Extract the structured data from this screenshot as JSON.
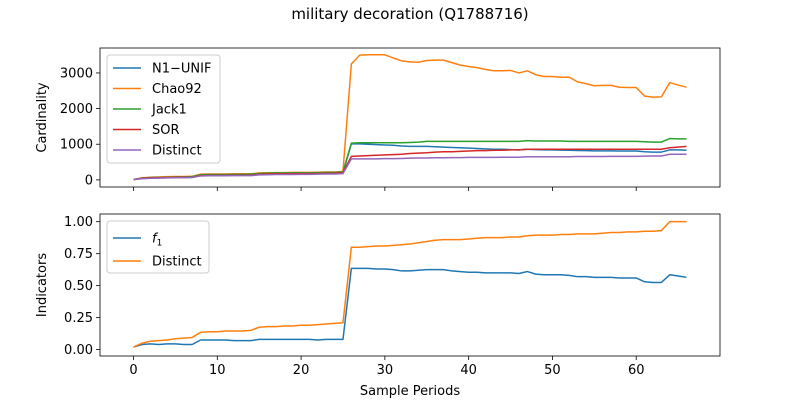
{
  "chart_data": [
    {
      "type": "line",
      "title": "military decoration (Q1788716)",
      "xlabel": "",
      "ylabel": "Cardinality",
      "xlim": [
        -4,
        70
      ],
      "ylim": [
        -200,
        3700
      ],
      "yticks": [
        0,
        1000,
        2000,
        3000
      ],
      "xticks": [
        0,
        10,
        20,
        30,
        40,
        50,
        60
      ],
      "show_xtick_labels": false,
      "grid": false,
      "legend_position": "upper-left",
      "x": [
        0,
        1,
        2,
        3,
        4,
        5,
        6,
        7,
        8,
        9,
        10,
        11,
        12,
        13,
        14,
        15,
        16,
        17,
        18,
        19,
        20,
        21,
        22,
        23,
        24,
        25,
        26,
        27,
        28,
        29,
        30,
        31,
        32,
        33,
        34,
        35,
        36,
        37,
        38,
        39,
        40,
        41,
        42,
        43,
        44,
        45,
        46,
        47,
        48,
        49,
        50,
        51,
        52,
        53,
        54,
        55,
        56,
        57,
        58,
        59,
        60,
        61,
        62,
        63,
        64,
        65,
        66
      ],
      "series": [
        {
          "name": "N1−UNIF",
          "color": "#1f77b4",
          "values": [
            10,
            40,
            50,
            55,
            60,
            65,
            65,
            70,
            120,
            125,
            125,
            125,
            130,
            130,
            130,
            155,
            165,
            170,
            170,
            170,
            175,
            175,
            180,
            185,
            185,
            200,
            1010,
            1010,
            1000,
            990,
            980,
            970,
            950,
            940,
            940,
            940,
            930,
            920,
            910,
            900,
            890,
            880,
            870,
            860,
            860,
            850,
            840,
            860,
            850,
            840,
            840,
            835,
            830,
            825,
            820,
            815,
            815,
            815,
            810,
            810,
            810,
            790,
            780,
            780,
            840,
            840,
            830
          ]
        },
        {
          "name": "Chao92",
          "color": "#ff7f0e",
          "values": [
            10,
            55,
            75,
            80,
            90,
            95,
            95,
            100,
            160,
            165,
            165,
            165,
            170,
            170,
            170,
            195,
            200,
            205,
            205,
            210,
            210,
            210,
            215,
            220,
            220,
            240,
            3250,
            3500,
            3510,
            3510,
            3510,
            3420,
            3340,
            3310,
            3300,
            3350,
            3360,
            3360,
            3290,
            3220,
            3180,
            3150,
            3100,
            3060,
            3060,
            3070,
            3000,
            3060,
            2950,
            2900,
            2900,
            2880,
            2880,
            2750,
            2700,
            2640,
            2650,
            2650,
            2600,
            2590,
            2590,
            2350,
            2320,
            2330,
            2730,
            2660,
            2600
          ]
        },
        {
          "name": "Jack1",
          "color": "#2ca02c",
          "values": [
            10,
            50,
            65,
            70,
            75,
            80,
            85,
            90,
            145,
            150,
            150,
            150,
            155,
            155,
            160,
            180,
            190,
            195,
            195,
            195,
            200,
            200,
            205,
            210,
            210,
            220,
            1030,
            1040,
            1040,
            1040,
            1040,
            1040,
            1040,
            1050,
            1060,
            1080,
            1080,
            1080,
            1080,
            1080,
            1080,
            1080,
            1080,
            1080,
            1080,
            1080,
            1080,
            1100,
            1090,
            1090,
            1090,
            1090,
            1080,
            1080,
            1080,
            1080,
            1080,
            1080,
            1080,
            1080,
            1080,
            1070,
            1060,
            1060,
            1160,
            1150,
            1150
          ]
        },
        {
          "name": "SOR",
          "color": "#d62728",
          "values": [
            10,
            45,
            60,
            62,
            65,
            70,
            72,
            75,
            120,
            125,
            125,
            125,
            130,
            130,
            130,
            155,
            165,
            170,
            170,
            170,
            175,
            175,
            180,
            185,
            185,
            200,
            660,
            670,
            680,
            690,
            700,
            710,
            720,
            740,
            750,
            760,
            780,
            790,
            790,
            800,
            810,
            820,
            820,
            830,
            830,
            840,
            840,
            860,
            860,
            860,
            860,
            860,
            860,
            860,
            860,
            860,
            860,
            860,
            860,
            860,
            860,
            860,
            860,
            860,
            900,
            920,
            940
          ]
        },
        {
          "name": "Distinct",
          "color": "#9467bd",
          "values": [
            10,
            30,
            45,
            50,
            55,
            60,
            60,
            65,
            110,
            115,
            115,
            115,
            120,
            120,
            120,
            140,
            145,
            150,
            150,
            150,
            155,
            155,
            160,
            165,
            165,
            175,
            590,
            590,
            590,
            590,
            595,
            595,
            600,
            610,
            615,
            615,
            620,
            620,
            625,
            625,
            630,
            630,
            630,
            630,
            635,
            635,
            635,
            650,
            650,
            650,
            650,
            650,
            650,
            655,
            655,
            655,
            655,
            660,
            660,
            660,
            660,
            665,
            670,
            670,
            720,
            720,
            720
          ]
        }
      ]
    },
    {
      "type": "line",
      "title": "",
      "xlabel": "Sample Periods",
      "ylabel": "Indicators",
      "xlim": [
        -4,
        70
      ],
      "ylim": [
        -0.05,
        1.06
      ],
      "yticks": [
        0.0,
        0.25,
        0.5,
        0.75,
        1.0
      ],
      "ytick_labels": [
        "0.00",
        "0.25",
        "0.50",
        "0.75",
        "1.00"
      ],
      "xticks": [
        0,
        10,
        20,
        30,
        40,
        50,
        60
      ],
      "grid": false,
      "legend_position": "upper-left",
      "x": [
        0,
        1,
        2,
        3,
        4,
        5,
        6,
        7,
        8,
        9,
        10,
        11,
        12,
        13,
        14,
        15,
        16,
        17,
        18,
        19,
        20,
        21,
        22,
        23,
        24,
        25,
        26,
        27,
        28,
        29,
        30,
        31,
        32,
        33,
        34,
        35,
        36,
        37,
        38,
        39,
        40,
        41,
        42,
        43,
        44,
        45,
        46,
        47,
        48,
        49,
        50,
        51,
        52,
        53,
        54,
        55,
        56,
        57,
        58,
        59,
        60,
        61,
        62,
        63,
        64,
        65,
        66
      ],
      "series": [
        {
          "name": "f1",
          "color": "#1f77b4",
          "values": [
            0.02,
            0.04,
            0.045,
            0.04,
            0.045,
            0.045,
            0.04,
            0.04,
            0.075,
            0.075,
            0.075,
            0.075,
            0.07,
            0.07,
            0.07,
            0.08,
            0.08,
            0.08,
            0.08,
            0.08,
            0.08,
            0.08,
            0.075,
            0.08,
            0.08,
            0.08,
            0.635,
            0.635,
            0.635,
            0.63,
            0.63,
            0.625,
            0.615,
            0.615,
            0.62,
            0.625,
            0.625,
            0.625,
            0.615,
            0.61,
            0.605,
            0.605,
            0.6,
            0.6,
            0.6,
            0.6,
            0.595,
            0.61,
            0.59,
            0.585,
            0.585,
            0.585,
            0.58,
            0.57,
            0.57,
            0.565,
            0.565,
            0.565,
            0.56,
            0.56,
            0.56,
            0.53,
            0.525,
            0.525,
            0.585,
            0.575,
            0.565
          ]
        },
        {
          "name": "Distinct",
          "color": "#ff7f0e",
          "values": [
            0.02,
            0.05,
            0.065,
            0.07,
            0.075,
            0.085,
            0.09,
            0.095,
            0.135,
            0.14,
            0.14,
            0.145,
            0.145,
            0.145,
            0.15,
            0.175,
            0.18,
            0.18,
            0.185,
            0.185,
            0.19,
            0.19,
            0.195,
            0.2,
            0.205,
            0.21,
            0.8,
            0.8,
            0.805,
            0.81,
            0.81,
            0.815,
            0.82,
            0.825,
            0.835,
            0.845,
            0.855,
            0.86,
            0.86,
            0.86,
            0.865,
            0.87,
            0.875,
            0.875,
            0.875,
            0.88,
            0.88,
            0.89,
            0.895,
            0.895,
            0.895,
            0.9,
            0.9,
            0.905,
            0.905,
            0.905,
            0.91,
            0.915,
            0.915,
            0.92,
            0.92,
            0.925,
            0.925,
            0.93,
            1.0,
            1.0,
            1.0
          ]
        }
      ]
    }
  ]
}
